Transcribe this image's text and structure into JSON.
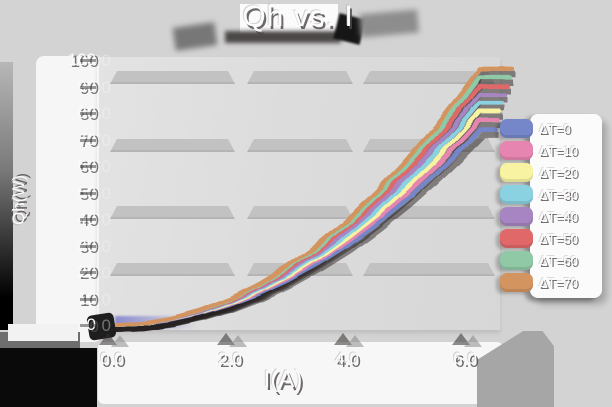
{
  "title": "Qh vs. I",
  "axes": {
    "x_label": "I(A)",
    "y_label": "Qh(W)",
    "x_ticks": [
      "0.0",
      "2.0",
      "4.0",
      "6.0"
    ],
    "y_ticks": [
      "0",
      "10",
      "20",
      "30",
      "40",
      "50",
      "60",
      "70",
      "80",
      "90",
      "100"
    ]
  },
  "colors": {
    "canvas_bg": "#d3d3d3",
    "plot_bg": "#dcdcdc",
    "grid_band": "#c2c2c2",
    "ghost_text": "#fcfcfc",
    "text_shadow": "#4e4848"
  },
  "chart_data": {
    "type": "line",
    "title": "Qh vs. I",
    "xlabel": "I(A)",
    "ylabel": "Qh(W)",
    "xlim": [
      0,
      6.6
    ],
    "ylim": [
      0,
      100
    ],
    "grid": "horizontal-bands",
    "grid_band_values": [
      93.5,
      68,
      42.5,
      21
    ],
    "legend_position": "right",
    "x": [
      0,
      0.5,
      1,
      1.5,
      2,
      2.5,
      3,
      3.5,
      4,
      4.5,
      5,
      5.5,
      6,
      6.25
    ],
    "series": [
      {
        "name": "ΔT=0",
        "color": "#7587c8",
        "values": [
          0,
          0.5,
          1.9,
          4.3,
          7.6,
          11.8,
          17.0,
          23.2,
          30.2,
          38.3,
          47.3,
          57.2,
          68.0,
          73.8
        ]
      },
      {
        "name": "ΔT=10",
        "color": "#e686b0",
        "values": [
          0,
          0.5,
          2.0,
          4.5,
          7.9,
          12.4,
          17.8,
          24.3,
          31.7,
          40.1,
          49.5,
          59.9,
          71.3,
          77.3
        ]
      },
      {
        "name": "ΔT=20",
        "color": "#f7f3a2",
        "values": [
          0,
          0.5,
          2.1,
          4.6,
          8.2,
          12.9,
          18.5,
          25.2,
          33.0,
          41.7,
          51.5,
          62.3,
          74.2,
          80.5
        ]
      },
      {
        "name": "ΔT=30",
        "color": "#8ad2e2",
        "values": [
          0,
          0.5,
          2.1,
          4.8,
          8.6,
          13.4,
          19.3,
          26.2,
          34.2,
          43.3,
          53.5,
          64.7,
          77.0,
          83.6
        ]
      },
      {
        "name": "ΔT=40",
        "color": "#a685c2",
        "values": [
          0,
          0.6,
          2.2,
          5.0,
          8.9,
          13.9,
          20.0,
          27.2,
          35.5,
          45.0,
          55.5,
          67.2,
          79.9,
          86.7
        ]
      },
      {
        "name": "ΔT=50",
        "color": "#e06868",
        "values": [
          0,
          0.6,
          2.3,
          5.2,
          9.2,
          14.4,
          20.8,
          28.3,
          37.0,
          46.8,
          57.8,
          69.9,
          83.2,
          90.2
        ]
      },
      {
        "name": "ΔT=60",
        "color": "#8fc9a6",
        "values": [
          0,
          0.6,
          2.4,
          5.4,
          9.6,
          14.9,
          21.5,
          29.3,
          38.2,
          48.4,
          59.8,
          72.3,
          86.0,
          93.4
        ]
      },
      {
        "name": "ΔT=70",
        "color": "#d4945f",
        "values": [
          0,
          0.6,
          2.5,
          5.6,
          9.9,
          15.4,
          22.2,
          30.3,
          39.5,
          50.0,
          61.8,
          74.7,
          88.9,
          96.5
        ]
      }
    ]
  }
}
